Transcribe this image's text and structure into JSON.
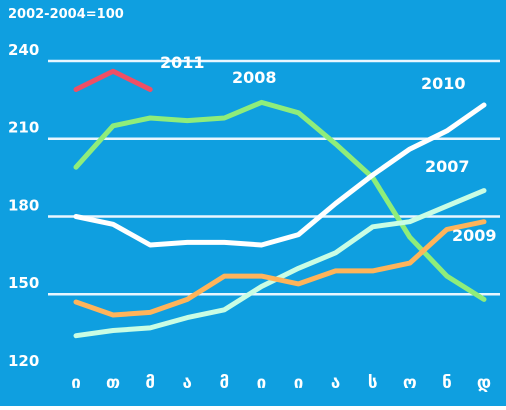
{
  "chart_data": {
    "type": "line",
    "title": "",
    "subtitle": "2002-2004=100",
    "xlabel": "",
    "ylabel": "",
    "categories": [
      "ი",
      "თ",
      "მ",
      "ა",
      "მ",
      "ი",
      "ი",
      "ა",
      "ს",
      "ო",
      "ნ",
      "დ"
    ],
    "ylim": [
      120,
      245
    ],
    "yticks": [
      120,
      150,
      180,
      210,
      240
    ],
    "grid": true,
    "legend": "inline labels next to lines",
    "background_color": "#0f9fe0",
    "grid_color": "#e8f6ff",
    "text_color": "#ffffff",
    "series": [
      {
        "name": "2011",
        "color": "#ef4f65",
        "values": [
          229,
          236,
          229,
          null,
          null,
          null,
          null,
          null,
          null,
          null,
          null,
          null
        ]
      },
      {
        "name": "2008",
        "color": "#8fed7a",
        "values": [
          199,
          215,
          218,
          217,
          218,
          224,
          220,
          208,
          195,
          172,
          157,
          148
        ]
      },
      {
        "name": "2010",
        "color": "#ffffff",
        "values": [
          180,
          177,
          169,
          170,
          170,
          169,
          173,
          185,
          196,
          206,
          213,
          223
        ]
      },
      {
        "name": "2007",
        "color": "#c9fde4",
        "values": [
          134,
          136,
          137,
          141,
          144,
          153,
          160,
          166,
          176,
          178,
          184,
          190
        ]
      },
      {
        "name": "2009",
        "color": "#ffb45a",
        "values": [
          147,
          142,
          143,
          148,
          157,
          157,
          154,
          159,
          159,
          162,
          175,
          178
        ]
      }
    ]
  }
}
